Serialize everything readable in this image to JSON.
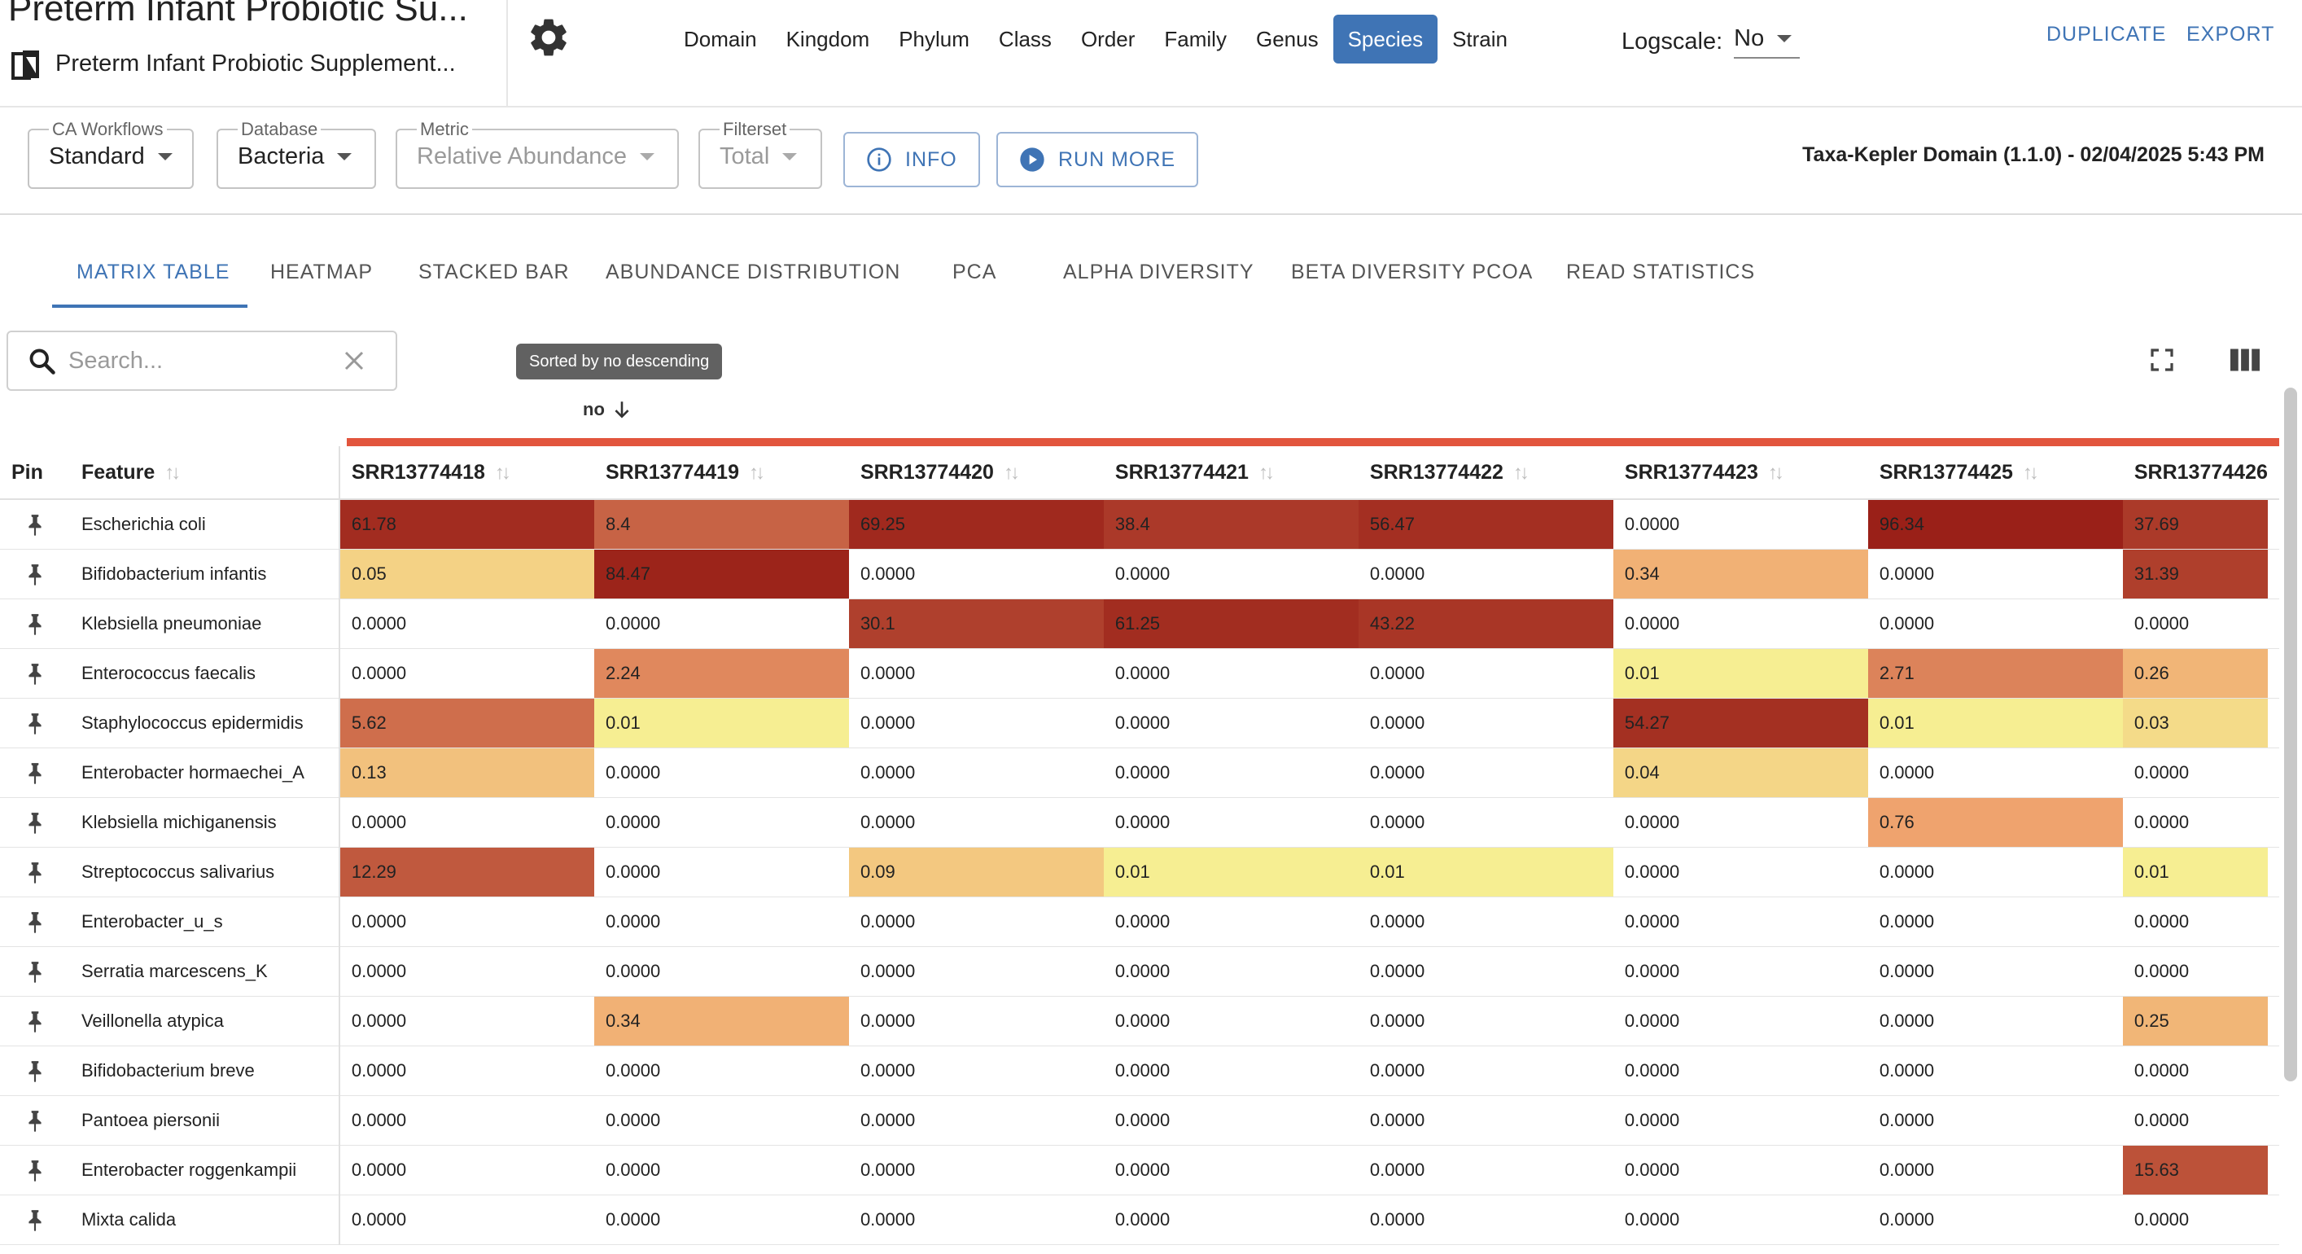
{
  "header": {
    "title": "Preterm Infant Probiotic Su...",
    "subtitle": "Preterm Infant Probiotic Supplement...",
    "taxonomy_levels": [
      "Domain",
      "Kingdom",
      "Phylum",
      "Class",
      "Order",
      "Family",
      "Genus",
      "Species",
      "Strain"
    ],
    "active_level": "Species",
    "logscale_label": "Logscale:",
    "logscale_value": "No",
    "duplicate_label": "DUPLICATE",
    "export_label": "EXPORT"
  },
  "toolbar": {
    "workflows": {
      "label": "CA Workflows",
      "value": "Standard"
    },
    "database": {
      "label": "Database",
      "value": "Bacteria"
    },
    "metric": {
      "label": "Metric",
      "value": "Relative Abundance"
    },
    "filterset": {
      "label": "Filterset",
      "value": "Total"
    },
    "info_label": "INFO",
    "run_more_label": "RUN MORE",
    "provenance": "Taxa-Kepler Domain (1.1.0) - 02/04/2025 5:43 PM"
  },
  "tabs": [
    "MATRIX TABLE",
    "HEATMAP",
    "STACKED BAR",
    "ABUNDANCE DISTRIBUTION",
    "PCA",
    "ALPHA DIVERSITY",
    "BETA DIVERSITY PCOA",
    "READ STATISTICS"
  ],
  "active_tab": "MATRIX TABLE",
  "search": {
    "placeholder": "Search..."
  },
  "sort": {
    "tooltip": "Sorted by no descending",
    "column_label": "no"
  },
  "table": {
    "pin_header": "Pin",
    "feature_header": "Feature",
    "samples": [
      "SRR13774418",
      "SRR13774419",
      "SRR13774420",
      "SRR13774421",
      "SRR13774422",
      "SRR13774423",
      "SRR13774425",
      "SRR13774426"
    ],
    "rows": [
      {
        "feature": "Escherichia coli",
        "values": [
          "61.78",
          "8.4",
          "69.25",
          "38.4",
          "56.47",
          "0.0000",
          "96.34",
          "37.69"
        ]
      },
      {
        "feature": "Bifidobacterium infantis",
        "values": [
          "0.05",
          "84.47",
          "0.0000",
          "0.0000",
          "0.0000",
          "0.34",
          "0.0000",
          "31.39"
        ]
      },
      {
        "feature": "Klebsiella pneumoniae",
        "values": [
          "0.0000",
          "0.0000",
          "30.1",
          "61.25",
          "43.22",
          "0.0000",
          "0.0000",
          "0.0000"
        ]
      },
      {
        "feature": "Enterococcus faecalis",
        "values": [
          "0.0000",
          "2.24",
          "0.0000",
          "0.0000",
          "0.0000",
          "0.01",
          "2.71",
          "0.26"
        ]
      },
      {
        "feature": "Staphylococcus epidermidis",
        "values": [
          "5.62",
          "0.01",
          "0.0000",
          "0.0000",
          "0.0000",
          "54.27",
          "0.01",
          "0.03"
        ]
      },
      {
        "feature": "Enterobacter hormaechei_A",
        "values": [
          "0.13",
          "0.0000",
          "0.0000",
          "0.0000",
          "0.0000",
          "0.04",
          "0.0000",
          "0.0000"
        ]
      },
      {
        "feature": "Klebsiella michiganensis",
        "values": [
          "0.0000",
          "0.0000",
          "0.0000",
          "0.0000",
          "0.0000",
          "0.0000",
          "0.76",
          "0.0000"
        ]
      },
      {
        "feature": "Streptococcus salivarius",
        "values": [
          "12.29",
          "0.0000",
          "0.09",
          "0.01",
          "0.01",
          "0.0000",
          "0.0000",
          "0.01"
        ]
      },
      {
        "feature": "Enterobacter_u_s",
        "values": [
          "0.0000",
          "0.0000",
          "0.0000",
          "0.0000",
          "0.0000",
          "0.0000",
          "0.0000",
          "0.0000"
        ]
      },
      {
        "feature": "Serratia marcescens_K",
        "values": [
          "0.0000",
          "0.0000",
          "0.0000",
          "0.0000",
          "0.0000",
          "0.0000",
          "0.0000",
          "0.0000"
        ]
      },
      {
        "feature": "Veillonella atypica",
        "values": [
          "0.0000",
          "0.34",
          "0.0000",
          "0.0000",
          "0.0000",
          "0.0000",
          "0.0000",
          "0.25"
        ]
      },
      {
        "feature": "Bifidobacterium breve",
        "values": [
          "0.0000",
          "0.0000",
          "0.0000",
          "0.0000",
          "0.0000",
          "0.0000",
          "0.0000",
          "0.0000"
        ]
      },
      {
        "feature": "Pantoea piersonii",
        "values": [
          "0.0000",
          "0.0000",
          "0.0000",
          "0.0000",
          "0.0000",
          "0.0000",
          "0.0000",
          "0.0000"
        ]
      },
      {
        "feature": "Enterobacter roggenkampii",
        "values": [
          "0.0000",
          "0.0000",
          "0.0000",
          "0.0000",
          "0.0000",
          "0.0000",
          "0.0000",
          "15.63"
        ]
      },
      {
        "feature": "Mixta calida",
        "values": [
          "0.0000",
          "0.0000",
          "0.0000",
          "0.0000",
          "0.0000",
          "0.0000",
          "0.0000",
          "0.0000"
        ]
      }
    ]
  },
  "colors": {
    "accent": "#3f74b5",
    "sort_bar": "#e2553d",
    "heat_low": "#f6ee92",
    "heat_mid": "#ef9e6c",
    "heat_high": "#991f17"
  }
}
